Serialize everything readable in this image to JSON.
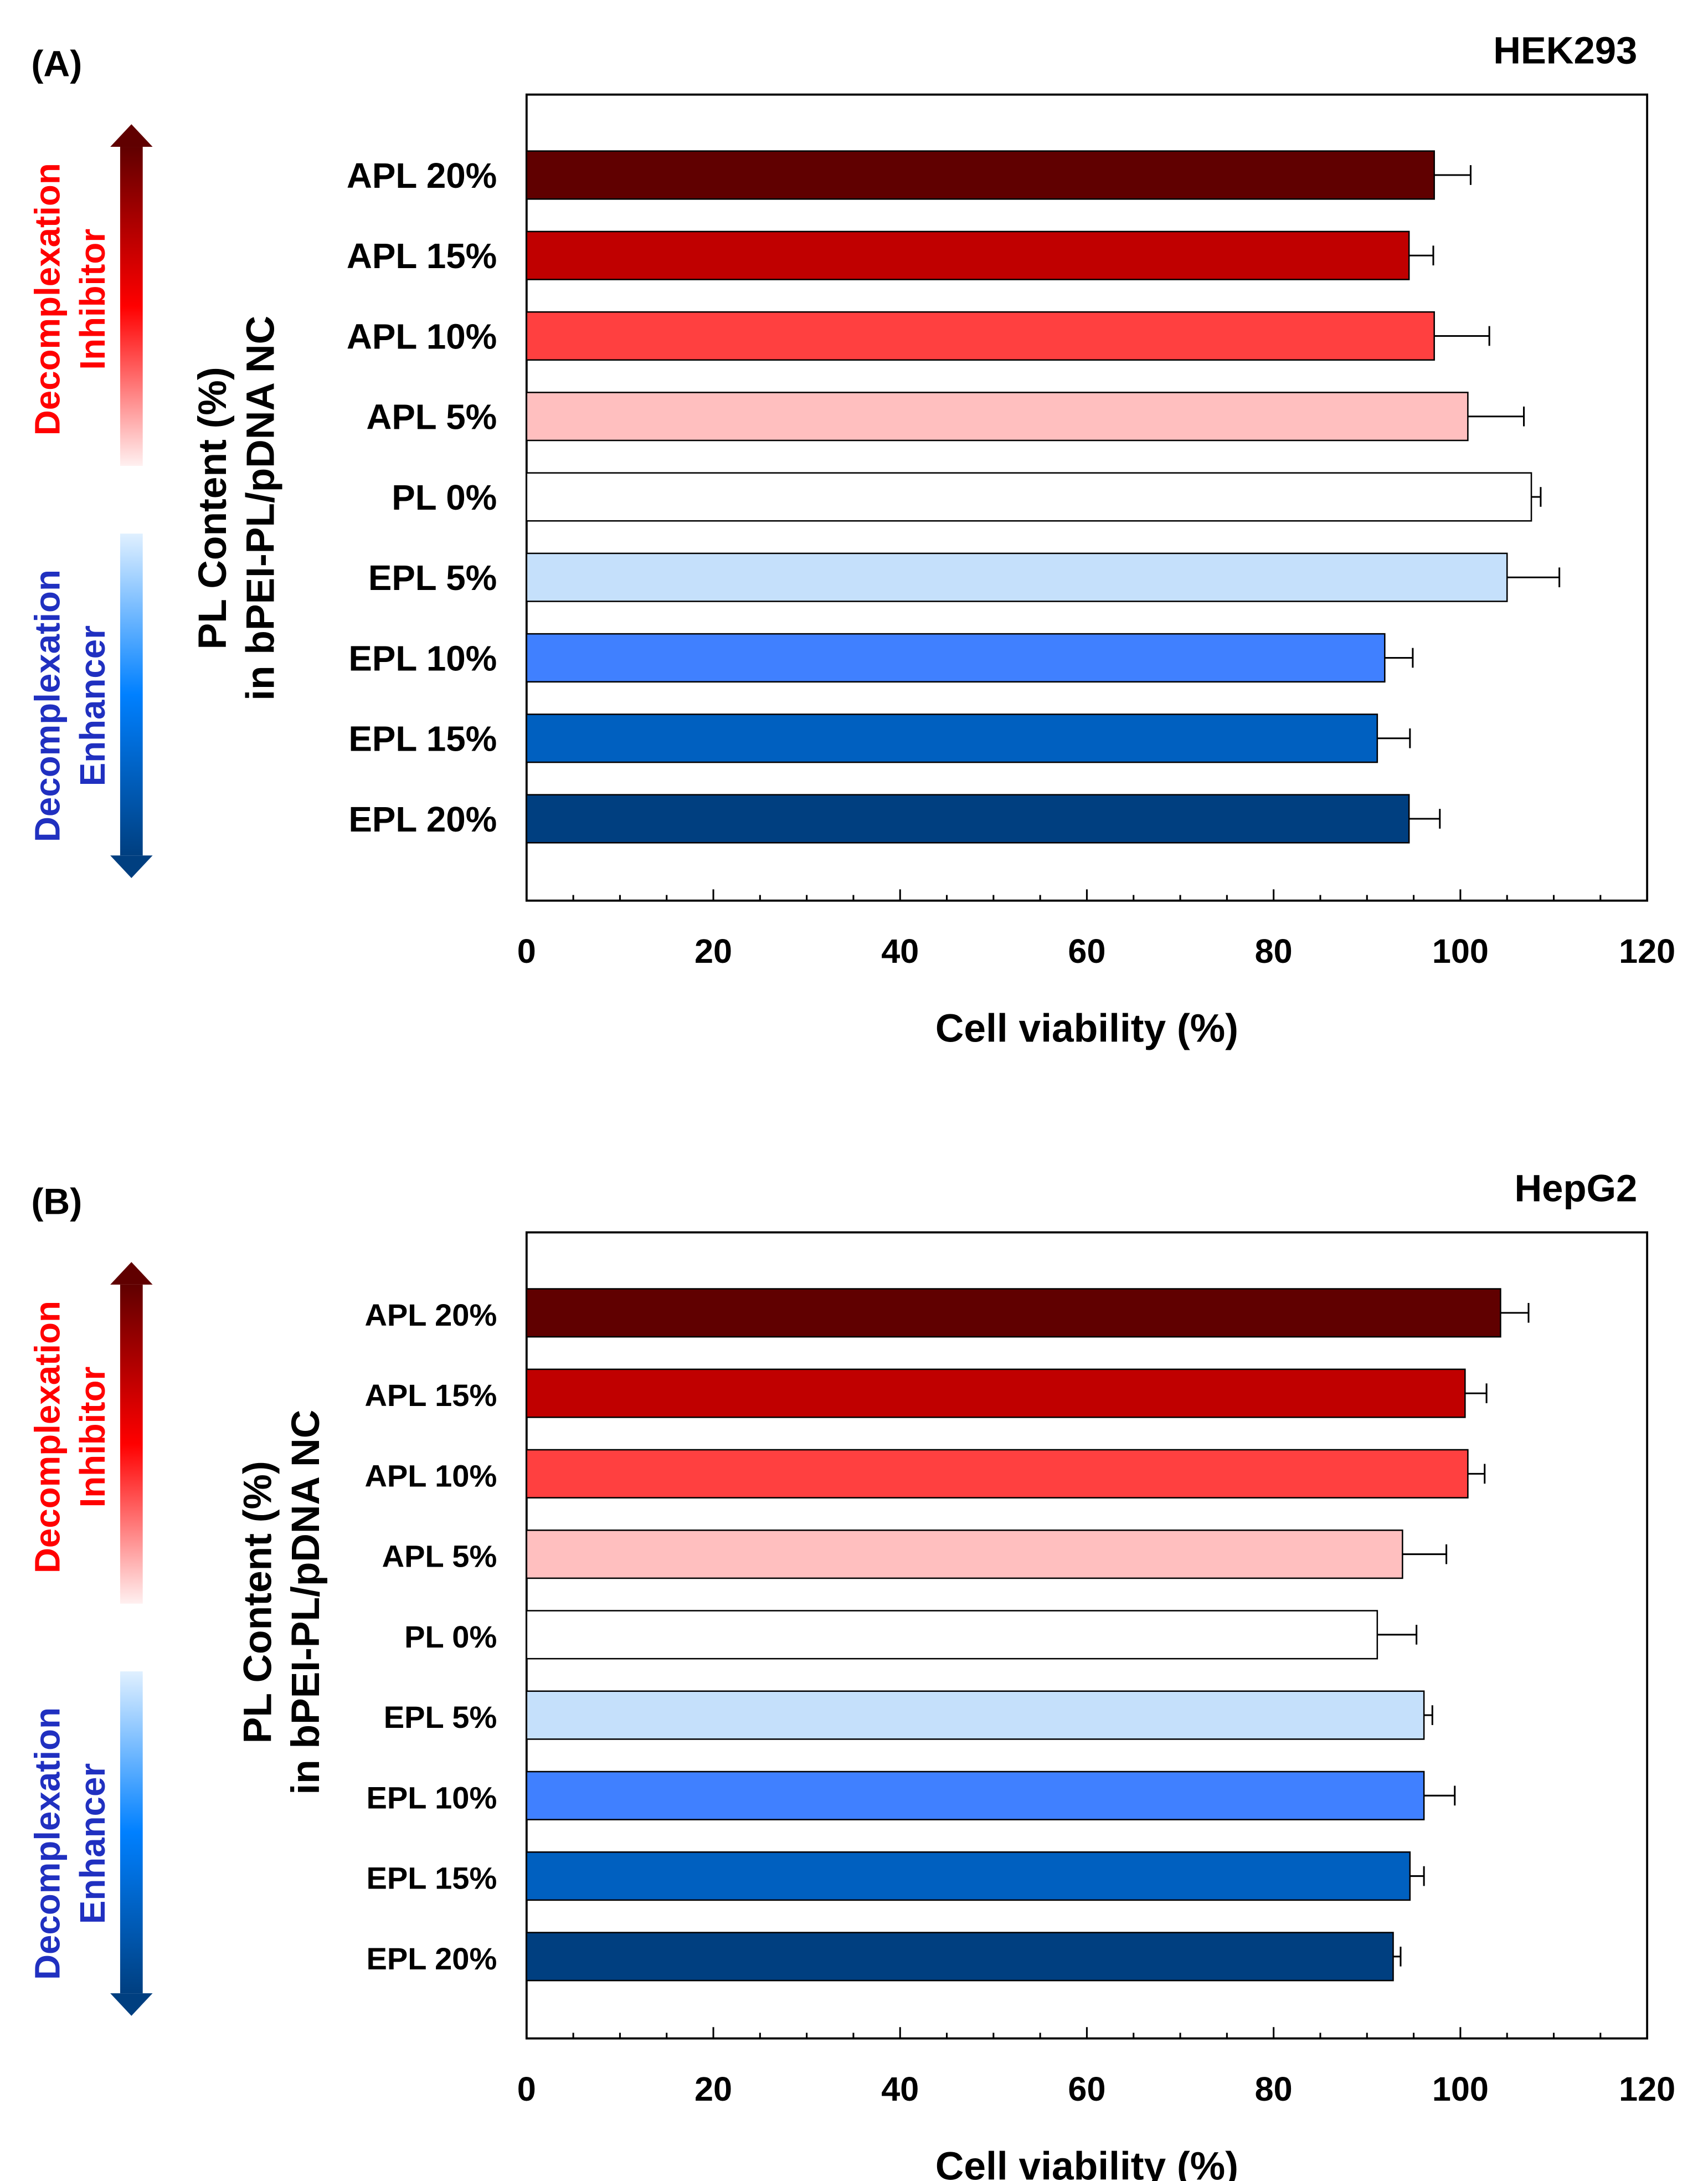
{
  "colors": {
    "APL 20%": "#600000",
    "APL 15%": "#c00000",
    "APL 10%": "#ff4040",
    "APL 5%": "#ffbfbf",
    "PL 0%": "#ffffff",
    "EPL 5%": "#c5e0fb",
    "EPL 10%": "#4080ff",
    "EPL 15%": "#0060c0",
    "EPL 20%": "#003f80",
    "inhibitor_text": "#ff0000",
    "enhancer_text": "#2030c0"
  },
  "annotations": {
    "decomplexation": "Decomplexation",
    "inhibitor": "Inhibitor",
    "enhancer": "Enhancer"
  },
  "chart_data": [
    {
      "type": "bar",
      "orientation": "horizontal",
      "panel_label": "(A)",
      "title": "HEK293",
      "xlabel": "Cell viability (%)",
      "ylabel": [
        "PL Content (%)",
        "in bPEI-PL/pDNA NC"
      ],
      "xlim": [
        0,
        120
      ],
      "xticks": [
        "0",
        "20",
        "40",
        "60",
        "80",
        "100",
        "120"
      ],
      "categories": [
        "APL 20%",
        "APL 15%",
        "APL 10%",
        "APL 5%",
        "PL 0%",
        "EPL 5%",
        "EPL 10%",
        "EPL 15%",
        "EPL 20%"
      ],
      "values": [
        97.2,
        94.5,
        97.2,
        100.8,
        107.6,
        105.0,
        91.9,
        91.1,
        94.5
      ],
      "errors": [
        3.9,
        2.6,
        5.9,
        6.0,
        1.0,
        5.6,
        3.0,
        3.5,
        3.3
      ]
    },
    {
      "type": "bar",
      "orientation": "horizontal",
      "panel_label": "(B)",
      "title": "HepG2",
      "xlabel": "Cell viability (%)",
      "ylabel": [
        "PL Content (%)",
        "in bPEI-PL/pDNA NC"
      ],
      "xlim": [
        0,
        120
      ],
      "xticks": [
        "0",
        "20",
        "40",
        "60",
        "80",
        "100",
        "120"
      ],
      "categories": [
        "APL 20%",
        "APL 15%",
        "APL 10%",
        "APL 5%",
        "PL 0%",
        "EPL 5%",
        "EPL 10%",
        "EPL 15%",
        "EPL 20%"
      ],
      "values": [
        104.3,
        100.5,
        100.8,
        93.8,
        91.1,
        96.1,
        96.1,
        94.6,
        92.8
      ],
      "errors": [
        3.0,
        2.3,
        1.8,
        4.7,
        4.2,
        0.9,
        3.3,
        1.5,
        0.8
      ]
    }
  ]
}
